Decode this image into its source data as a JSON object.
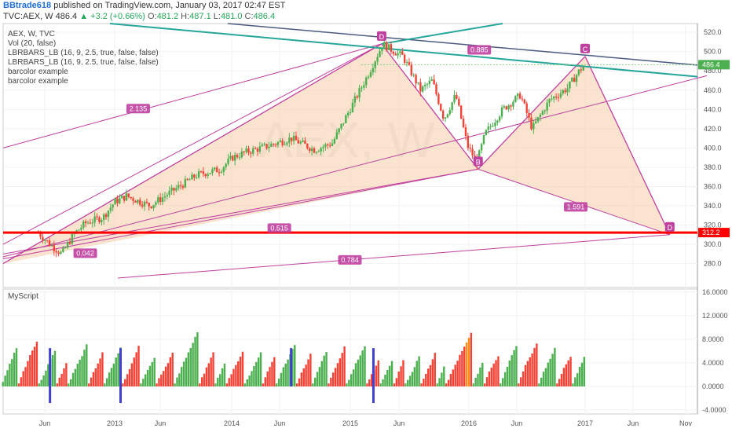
{
  "header": {
    "author": "BBtrade618",
    "published": "published on TradingView.com, January 03, 2017 02:47 EST",
    "symbol": "TVC:AEX, W",
    "last": "486.4",
    "change": "▲ +3.2 (+0.66%)",
    "open_label": "O:",
    "open": "481.2",
    "high_label": "H:",
    "high": "487.1",
    "low_label": "L:",
    "low": "481.0",
    "close_label": "C:",
    "close": "486.4"
  },
  "legend": [
    "AEX, W, TVC",
    "Vol (20, false)",
    "LBRBARS_LB (16, 9, 2.5, true, false, false)",
    "LBRBARS_LB (16, 9, 2.5, true, false, false)",
    "barcolor example",
    "barcolor example"
  ],
  "indicator_title": "MyScript",
  "colors": {
    "up": "#4caf50",
    "down": "#f44336",
    "pattern_line": "#c040a0",
    "pattern_fill": "#f6c9a0",
    "trend": "#26a69a",
    "support": "#ff0000",
    "blue_spike": "#3f3fd0",
    "orange_bar": "#ff8c1a"
  },
  "chart_data": [
    {
      "type": "candlestick",
      "x_ticks": [
        "Jun",
        "2013",
        "Jun",
        "2014",
        "Jun",
        "2015",
        "Jun",
        "2016",
        "Jun",
        "2017",
        "Jun",
        "Nov"
      ],
      "y_ticks": [
        "280.0",
        "300.0",
        "320.0",
        "340.0",
        "360.0",
        "380.0",
        "400.0",
        "420.0",
        "440.0",
        "460.0",
        "480.0",
        "500.0",
        "520.0"
      ],
      "ylim": [
        265,
        525
      ],
      "last_price_label": "486.4",
      "support_level": 312.2,
      "support_label": "312.2",
      "price_path": [
        [
          2012.35,
          312
        ],
        [
          2012.45,
          300
        ],
        [
          2012.55,
          290
        ],
        [
          2012.65,
          310
        ],
        [
          2012.75,
          322
        ],
        [
          2012.9,
          328
        ],
        [
          2013.0,
          344
        ],
        [
          2013.1,
          350
        ],
        [
          2013.3,
          340
        ],
        [
          2013.5,
          356
        ],
        [
          2013.7,
          372
        ],
        [
          2013.9,
          378
        ],
        [
          2014.0,
          390
        ],
        [
          2014.1,
          395
        ],
        [
          2014.3,
          402
        ],
        [
          2014.5,
          410
        ],
        [
          2014.7,
          398
        ],
        [
          2014.85,
          405
        ],
        [
          2015.0,
          440
        ],
        [
          2015.15,
          475
        ],
        [
          2015.28,
          508
        ],
        [
          2015.35,
          502
        ],
        [
          2015.45,
          495
        ],
        [
          2015.6,
          460
        ],
        [
          2015.7,
          470
        ],
        [
          2015.8,
          430
        ],
        [
          2015.9,
          455
        ],
        [
          2016.0,
          402
        ],
        [
          2016.08,
          385
        ],
        [
          2016.15,
          415
        ],
        [
          2016.3,
          440
        ],
        [
          2016.45,
          455
        ],
        [
          2016.55,
          420
        ],
        [
          2016.7,
          450
        ],
        [
          2016.85,
          462
        ],
        [
          2016.95,
          480
        ],
        [
          2017.0,
          486.4
        ]
      ],
      "pattern_points": [
        {
          "label": "D",
          "x": 2015.27,
          "y": 508
        },
        {
          "label": "B",
          "x": 2016.09,
          "y": 378
        },
        {
          "label": "C",
          "x": 2017.0,
          "y": 495
        },
        {
          "label": "D",
          "x": 2017.72,
          "y": 310
        }
      ],
      "ratios": [
        {
          "label": "2.135",
          "x": 2013.2,
          "y": 440
        },
        {
          "label": "0.515",
          "x": 2014.4,
          "y": 316
        },
        {
          "label": "0.042",
          "x": 2012.75,
          "y": 290
        },
        {
          "label": "0.784",
          "x": 2015.0,
          "y": 283
        },
        {
          "label": "1.591",
          "x": 2016.92,
          "y": 338
        },
        {
          "label": "0.885",
          "x": 2016.1,
          "y": 501
        }
      ]
    },
    {
      "type": "bar",
      "title": "MyScript",
      "y_ticks": [
        "-4.0000",
        "0.0000",
        "4.0000",
        "8.0000",
        "12.0000",
        "16.0000"
      ],
      "ylim": [
        -5,
        16.5
      ],
      "spikes": [
        {
          "x": 2012.45,
          "value": 6.5,
          "low": -2.8
        },
        {
          "x": 2013.05,
          "value": 6.5,
          "low": -2.8
        },
        {
          "x": 2014.5,
          "value": 6.5,
          "low": 0
        },
        {
          "x": 2015.2,
          "value": 6.5,
          "low": -2.8
        }
      ]
    }
  ]
}
